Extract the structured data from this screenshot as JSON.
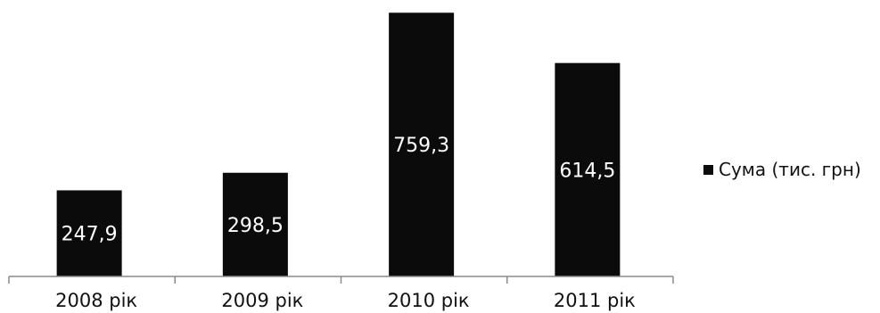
{
  "chart_data": {
    "type": "bar",
    "categories": [
      "2008 рік",
      "2009 рік",
      "2010 рік",
      "2011 рік"
    ],
    "series": [
      {
        "name": "Сума (тис. грн)",
        "values": [
          247.9,
          298.5,
          759.3,
          614.5
        ],
        "value_labels": [
          "247,9",
          "298,5",
          "759,3",
          "614,5"
        ],
        "color": "#0b0b0b"
      }
    ],
    "title": "",
    "xlabel": "",
    "ylabel": "",
    "ylim": [
      0,
      760
    ],
    "grid": false,
    "legend_position": "right",
    "data_label_color": "#ffffff"
  }
}
